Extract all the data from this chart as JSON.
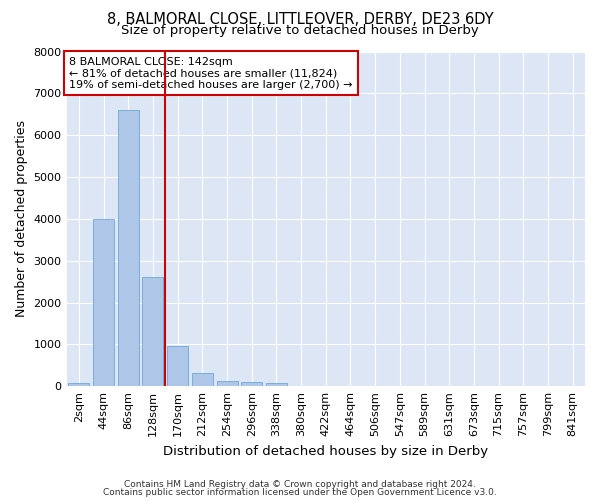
{
  "title": "8, BALMORAL CLOSE, LITTLEOVER, DERBY, DE23 6DY",
  "subtitle": "Size of property relative to detached houses in Derby",
  "xlabel": "Distribution of detached houses by size in Derby",
  "ylabel": "Number of detached properties",
  "footnote1": "Contains HM Land Registry data © Crown copyright and database right 2024.",
  "footnote2": "Contains public sector information licensed under the Open Government Licence v3.0.",
  "annotation_line1": "8 BALMORAL CLOSE: 142sqm",
  "annotation_line2": "← 81% of detached houses are smaller (11,824)",
  "annotation_line3": "19% of semi-detached houses are larger (2,700) →",
  "bar_color": "#aec6e8",
  "bar_edge_color": "#5a9fd4",
  "vline_color": "#cc0000",
  "vline_x": 3.5,
  "fig_bg_color": "#ffffff",
  "plot_bg_color": "#dce6f5",
  "grid_color": "#ffffff",
  "categories": [
    "2sqm",
    "44sqm",
    "86sqm",
    "128sqm",
    "170sqm",
    "212sqm",
    "254sqm",
    "296sqm",
    "338sqm",
    "380sqm",
    "422sqm",
    "464sqm",
    "506sqm",
    "547sqm",
    "589sqm",
    "631sqm",
    "673sqm",
    "715sqm",
    "757sqm",
    "799sqm",
    "841sqm"
  ],
  "values": [
    70,
    4000,
    6600,
    2600,
    950,
    310,
    130,
    110,
    70,
    0,
    0,
    0,
    0,
    0,
    0,
    0,
    0,
    0,
    0,
    0,
    0
  ],
  "ylim": [
    0,
    8000
  ],
  "yticks": [
    0,
    1000,
    2000,
    3000,
    4000,
    5000,
    6000,
    7000,
    8000
  ],
  "title_fontsize": 10.5,
  "subtitle_fontsize": 9.5,
  "xlabel_fontsize": 9.5,
  "ylabel_fontsize": 9,
  "tick_fontsize": 8,
  "footnote_fontsize": 6.5,
  "annotation_fontsize": 8
}
